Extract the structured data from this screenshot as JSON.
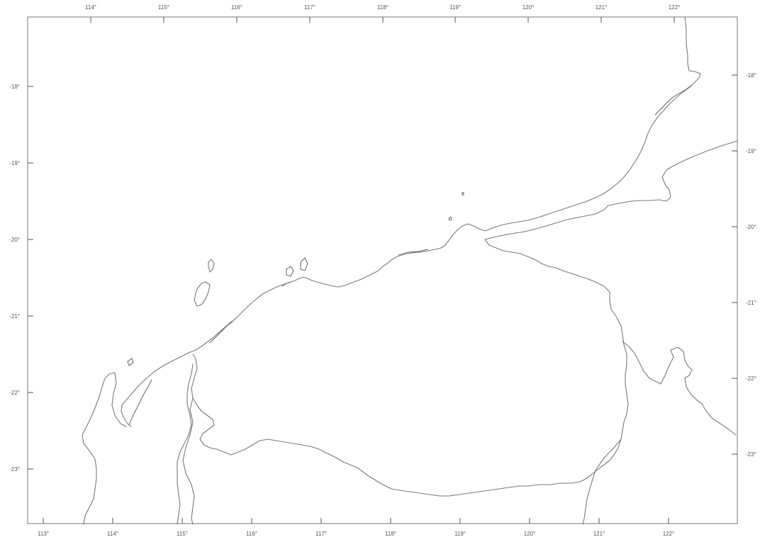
{
  "map": {
    "top_ticks": [
      "114°",
      "115°",
      "116°",
      "117°",
      "118°",
      "119°",
      "120°",
      "121°",
      "122°"
    ],
    "bottom_ticks": [
      "113°",
      "114°",
      "115°",
      "116°",
      "117°",
      "118°",
      "119°",
      "120°",
      "121°",
      "122°"
    ],
    "left_ticks": [
      "-18°",
      "-19°",
      "-20°",
      "-21°",
      "-22°",
      "-23°"
    ],
    "right_ticks": [
      "-18°",
      "-19°",
      "-20°",
      "-21°",
      "-22°",
      "-23°"
    ],
    "line_color": "#7a7a7a",
    "background": "#ffffff"
  }
}
